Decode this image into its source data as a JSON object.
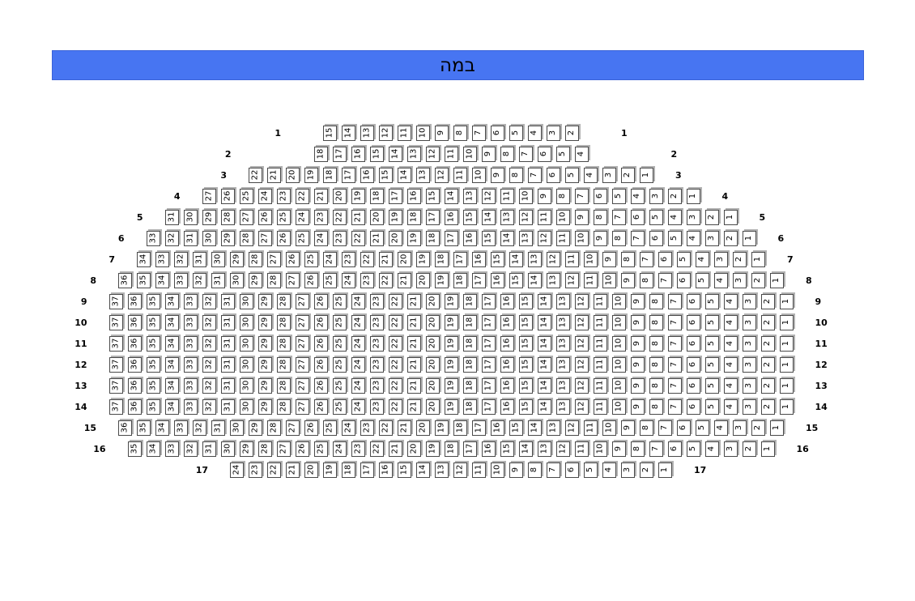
{
  "stage": {
    "label": "במה",
    "background_color": "#4775f2",
    "text_color": "#000000"
  },
  "seat_map": {
    "seat_border_color": "#4a4a4a",
    "seat_shadow_color": "#b2b2b2",
    "rows": [
      {
        "row": "1",
        "pad": 1,
        "seats": [
          15,
          14,
          13,
          12,
          11,
          10,
          9,
          8,
          7,
          6,
          5,
          4,
          3,
          2
        ]
      },
      {
        "row": "2",
        "pad": 3,
        "seats": [
          18,
          17,
          16,
          15,
          14,
          13,
          12,
          11,
          10,
          9,
          8,
          7,
          6,
          5,
          4
        ]
      },
      {
        "row": "3",
        "pad": 0,
        "seats": [
          22,
          21,
          20,
          19,
          18,
          17,
          16,
          15,
          14,
          13,
          12,
          11,
          10,
          9,
          8,
          7,
          6,
          5,
          4,
          3,
          2,
          1
        ]
      },
      {
        "row": "4",
        "pad": 0,
        "seats": [
          27,
          26,
          25,
          24,
          23,
          22,
          21,
          20,
          19,
          18,
          17,
          16,
          15,
          14,
          13,
          12,
          11,
          10,
          9,
          8,
          7,
          6,
          5,
          4,
          3,
          2,
          1
        ]
      },
      {
        "row": "5",
        "pad": 0,
        "seats": [
          31,
          30,
          29,
          28,
          27,
          26,
          25,
          24,
          23,
          22,
          21,
          20,
          19,
          18,
          17,
          16,
          15,
          14,
          13,
          12,
          11,
          10,
          9,
          8,
          7,
          6,
          5,
          4,
          3,
          2,
          1
        ]
      },
      {
        "row": "6",
        "pad": 0,
        "seats": [
          33,
          32,
          31,
          30,
          29,
          28,
          27,
          26,
          25,
          24,
          23,
          22,
          21,
          20,
          19,
          18,
          17,
          16,
          15,
          14,
          13,
          12,
          11,
          10,
          9,
          8,
          7,
          6,
          5,
          4,
          3,
          2,
          1
        ]
      },
      {
        "row": "7",
        "pad": 0,
        "seats": [
          34,
          33,
          32,
          31,
          30,
          29,
          28,
          27,
          26,
          25,
          24,
          23,
          22,
          21,
          20,
          19,
          18,
          17,
          16,
          15,
          14,
          13,
          12,
          11,
          10,
          9,
          8,
          7,
          6,
          5,
          4,
          3,
          2,
          1
        ]
      },
      {
        "row": "8",
        "pad": 0,
        "seats": [
          36,
          35,
          34,
          33,
          32,
          31,
          30,
          29,
          28,
          27,
          26,
          25,
          24,
          23,
          22,
          21,
          20,
          19,
          18,
          17,
          16,
          15,
          14,
          13,
          12,
          11,
          10,
          9,
          8,
          7,
          6,
          5,
          4,
          3,
          2,
          1
        ]
      },
      {
        "row": "9",
        "pad": 0,
        "seats": [
          37,
          36,
          35,
          34,
          33,
          32,
          31,
          30,
          29,
          28,
          27,
          26,
          25,
          24,
          23,
          22,
          21,
          20,
          19,
          18,
          17,
          16,
          15,
          14,
          13,
          12,
          11,
          10,
          9,
          8,
          7,
          6,
          5,
          4,
          3,
          2,
          1
        ]
      },
      {
        "row": "10",
        "pad": 0,
        "seats": [
          37,
          36,
          35,
          34,
          33,
          32,
          31,
          30,
          29,
          28,
          27,
          26,
          25,
          24,
          23,
          22,
          21,
          20,
          19,
          18,
          17,
          16,
          15,
          14,
          13,
          12,
          11,
          10,
          9,
          8,
          7,
          6,
          5,
          4,
          3,
          2,
          1
        ]
      },
      {
        "row": "11",
        "pad": 0,
        "seats": [
          37,
          36,
          35,
          34,
          33,
          32,
          31,
          30,
          29,
          28,
          27,
          26,
          25,
          24,
          23,
          22,
          21,
          20,
          19,
          18,
          17,
          16,
          15,
          14,
          13,
          12,
          11,
          10,
          9,
          8,
          7,
          6,
          5,
          4,
          3,
          2,
          1
        ]
      },
      {
        "row": "12",
        "pad": 0,
        "seats": [
          37,
          36,
          35,
          34,
          33,
          32,
          31,
          30,
          29,
          28,
          27,
          26,
          25,
          24,
          23,
          22,
          21,
          20,
          19,
          18,
          17,
          16,
          15,
          14,
          13,
          12,
          11,
          10,
          9,
          8,
          7,
          6,
          5,
          4,
          3,
          2,
          1
        ]
      },
      {
        "row": "13",
        "pad": 0,
        "seats": [
          37,
          36,
          35,
          34,
          33,
          32,
          31,
          30,
          29,
          28,
          27,
          26,
          25,
          24,
          23,
          22,
          21,
          20,
          19,
          18,
          17,
          16,
          15,
          14,
          13,
          12,
          11,
          10,
          9,
          8,
          7,
          6,
          5,
          4,
          3,
          2,
          1
        ]
      },
      {
        "row": "14",
        "pad": 0,
        "seats": [
          37,
          36,
          35,
          34,
          33,
          32,
          31,
          30,
          29,
          28,
          27,
          26,
          25,
          24,
          23,
          22,
          21,
          20,
          19,
          18,
          17,
          16,
          15,
          14,
          13,
          12,
          11,
          10,
          9,
          8,
          7,
          6,
          5,
          4,
          3,
          2,
          1
        ]
      },
      {
        "row": "15",
        "pad": 0,
        "seats": [
          36,
          35,
          34,
          33,
          32,
          31,
          30,
          29,
          28,
          27,
          26,
          25,
          24,
          23,
          22,
          21,
          20,
          19,
          18,
          17,
          16,
          15,
          14,
          13,
          12,
          11,
          10,
          9,
          8,
          7,
          6,
          5,
          4,
          3,
          2,
          1
        ]
      },
      {
        "row": "16",
        "pad": 0,
        "seats": [
          35,
          34,
          33,
          32,
          31,
          30,
          29,
          28,
          27,
          26,
          25,
          24,
          23,
          22,
          21,
          20,
          19,
          18,
          17,
          16,
          15,
          14,
          13,
          12,
          11,
          10,
          9,
          8,
          7,
          6,
          5,
          4,
          3,
          2,
          1
        ]
      },
      {
        "row": "17",
        "pad": 0,
        "seats": [
          24,
          23,
          22,
          21,
          20,
          19,
          18,
          17,
          16,
          15,
          14,
          13,
          12,
          11,
          10,
          9,
          8,
          7,
          6,
          5,
          4,
          3,
          2,
          1
        ]
      }
    ]
  }
}
